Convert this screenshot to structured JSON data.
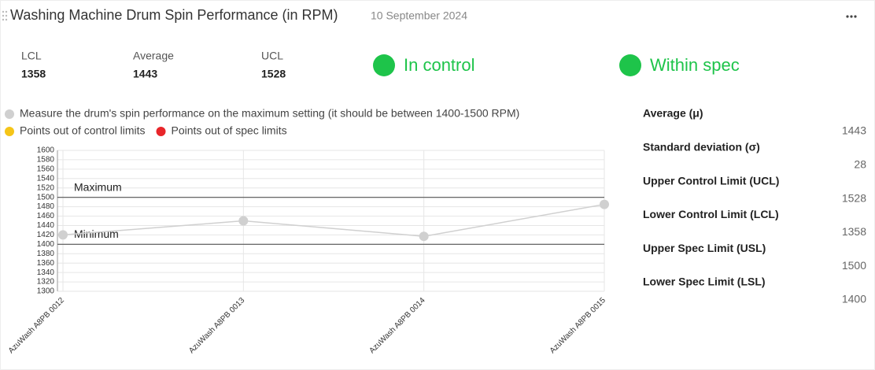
{
  "header": {
    "title": "Washing Machine Drum Spin Performance (in RPM)",
    "date": "10 September 2024"
  },
  "stats": [
    {
      "label": "LCL",
      "value": "1358"
    },
    {
      "label": "Average",
      "value": "1443"
    },
    {
      "label": "UCL",
      "value": "1528"
    }
  ],
  "status": [
    {
      "label": "In control",
      "color": "#1ec44a"
    },
    {
      "label": "Within spec",
      "color": "#1ec44a"
    }
  ],
  "chart_data": {
    "type": "line",
    "categories": [
      "AzuWash A8PB 0012",
      "AzuWash A8PB 0013",
      "AzuWash A8PB 0014",
      "AzuWash A8PB 0015"
    ],
    "series": [
      {
        "name": "Measure the drum's spin performance on the maximum setting (it should be between 1400-1500 RPM)",
        "color": "#d0d0d0",
        "values": [
          1420,
          1450,
          1417,
          1485
        ]
      }
    ],
    "legend_items": [
      {
        "name": "Points out of control limits",
        "color": "#f5c518"
      },
      {
        "name": "Points out of spec limits",
        "color": "#e8262a"
      }
    ],
    "reference_lines": [
      {
        "label": "Maximum",
        "value": 1500
      },
      {
        "label": "Minimum",
        "value": 1400
      }
    ],
    "ylim": [
      1300,
      1600
    ],
    "yticks": [
      1300,
      1320,
      1340,
      1360,
      1380,
      1400,
      1420,
      1440,
      1460,
      1480,
      1500,
      1520,
      1540,
      1560,
      1580,
      1600
    ],
    "grid": true
  },
  "summary": [
    {
      "label": "Average (μ)",
      "value": "1443"
    },
    {
      "label": "Standard deviation (σ)",
      "value": "28"
    },
    {
      "label": "Upper Control Limit (UCL)",
      "value": "1528"
    },
    {
      "label": "Lower Control Limit (LCL)",
      "value": "1358"
    },
    {
      "label": "Upper Spec Limit (USL)",
      "value": "1500"
    },
    {
      "label": "Lower Spec Limit (LSL)",
      "value": "1400"
    }
  ]
}
